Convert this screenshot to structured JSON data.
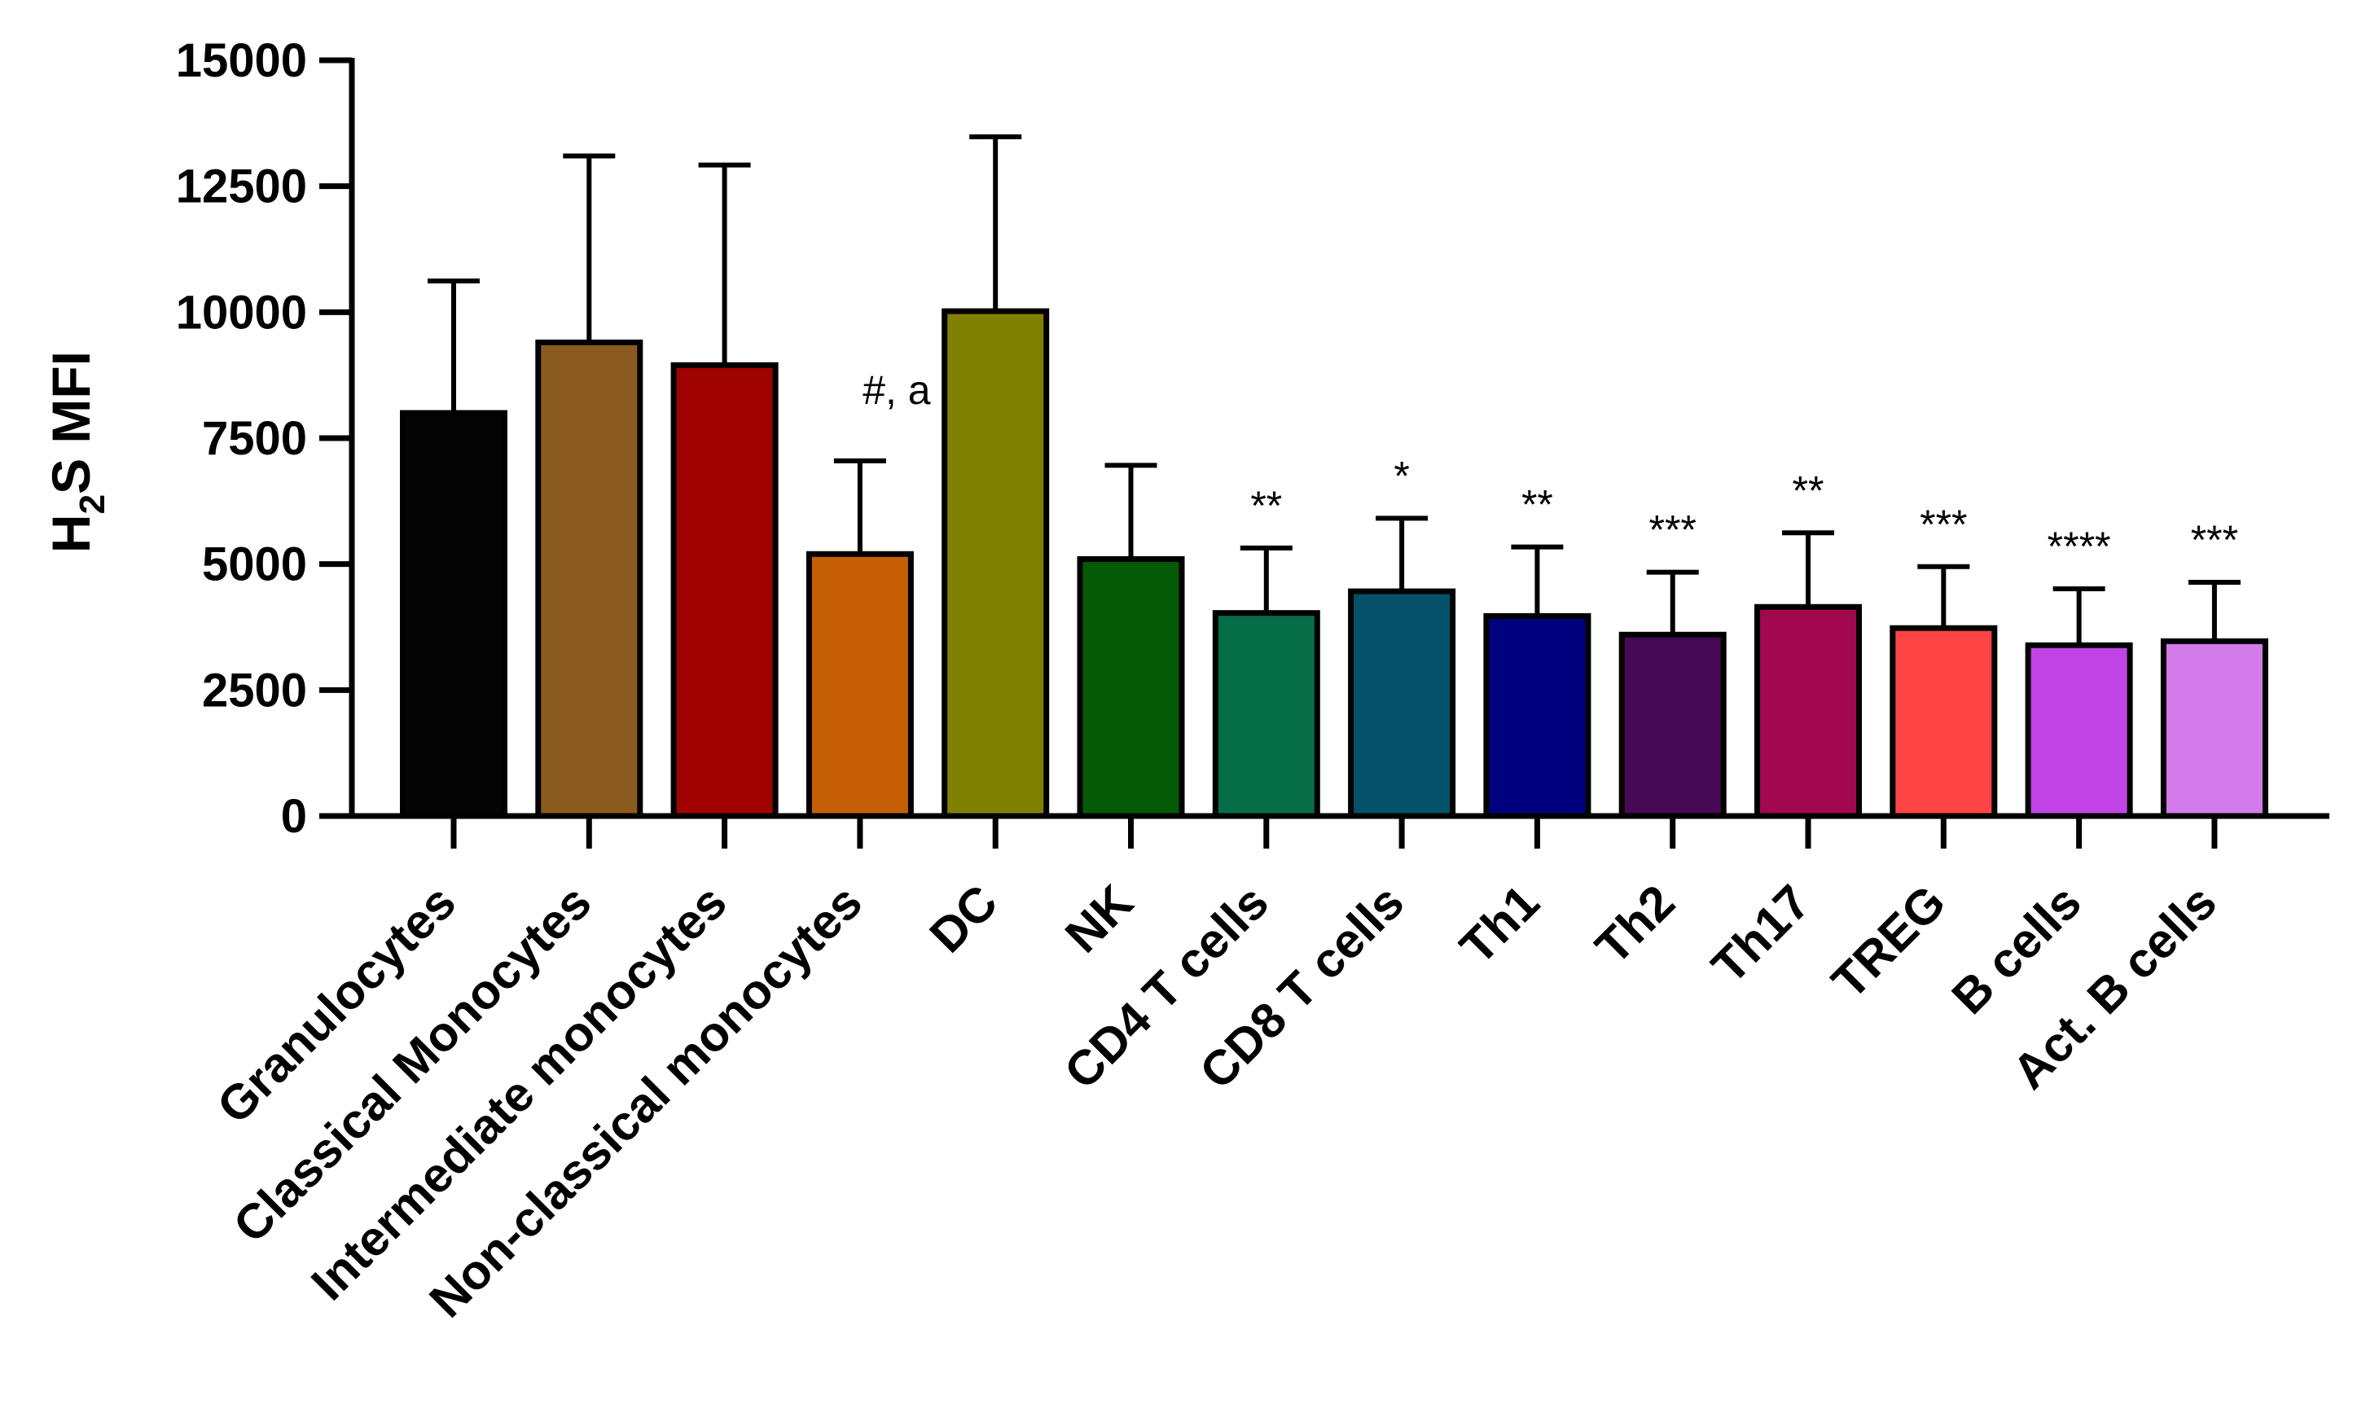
{
  "chart_data": {
    "type": "bar",
    "title": "",
    "xlabel": "",
    "ylabel": {
      "main": "H",
      "sub": "2",
      "rest": "S MFI"
    },
    "ylim": [
      0,
      15000
    ],
    "yticks": [
      "0",
      "2500",
      "5000",
      "7500",
      "10000",
      "12500",
      "15000"
    ],
    "ytick_values": [
      0,
      2500,
      5000,
      7500,
      10000,
      12500,
      15000
    ],
    "categories": [
      "Granulocytes",
      "Classical Monocytes",
      "Intermediate monocytes",
      "Non-classical monocytes",
      "DC",
      "NK",
      "CD4 T cells",
      "CD8 T cells",
      "Th1",
      "Th2",
      "Th17",
      "TREG",
      "B cells",
      "Act. B cells"
    ],
    "values": [
      8000,
      9400,
      8950,
      5200,
      10020,
      5100,
      4030,
      4460,
      3970,
      3600,
      4150,
      3730,
      3390,
      3470
    ],
    "error_upper": [
      10620,
      13100,
      12920,
      7050,
      13480,
      6960,
      5320,
      5910,
      5340,
      4840,
      5620,
      4950,
      4510,
      4640
    ],
    "colors": [
      "#050505",
      "#8B5A1F",
      "#A00202",
      "#C55F06",
      "#808000",
      "#045A05",
      "#056E49",
      "#03526A",
      "#00007F",
      "#460A54",
      "#A20850",
      "#FF4545",
      "#C244E6",
      "#D27BE9"
    ],
    "annotations": [
      "",
      "",
      "",
      "#, a",
      "",
      "",
      "**",
      "*",
      "**",
      "***",
      "**",
      "***",
      "****",
      "***"
    ],
    "grid": false,
    "legend": "none"
  }
}
